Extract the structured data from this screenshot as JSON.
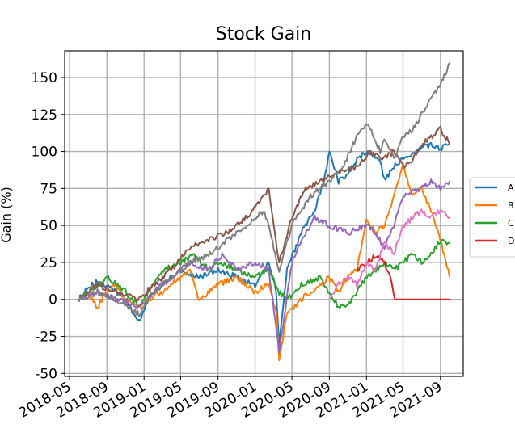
{
  "chart_data": {
    "type": "line",
    "title": "Stock Gain",
    "xlabel": "",
    "ylabel": "Gain (%)",
    "x_range": [
      "2018-04-15",
      "2021-11-15"
    ],
    "ylim": [
      -52,
      168
    ],
    "grid": true,
    "legend_position": "right (partially cut off)",
    "x_ticks": [
      "2018-05",
      "2018-09",
      "2019-01",
      "2019-05",
      "2019-09",
      "2020-01",
      "2020-05",
      "2020-09",
      "2021-01",
      "2021-05",
      "2021-09"
    ],
    "y_ticks": [
      -50,
      -25,
      0,
      25,
      50,
      75,
      100,
      125,
      150
    ],
    "series": [
      {
        "name": "A",
        "color": "#1f77b4",
        "points": [
          [
            "2018-06-01",
            0
          ],
          [
            "2018-07-01",
            8
          ],
          [
            "2018-08-01",
            12
          ],
          [
            "2018-09-01",
            10
          ],
          [
            "2018-10-01",
            5
          ],
          [
            "2018-11-01",
            0
          ],
          [
            "2018-12-15",
            -15
          ],
          [
            "2019-01-15",
            0
          ],
          [
            "2019-03-01",
            10
          ],
          [
            "2019-05-01",
            20
          ],
          [
            "2019-07-01",
            15
          ],
          [
            "2019-09-01",
            20
          ],
          [
            "2019-11-01",
            15
          ],
          [
            "2020-01-01",
            10
          ],
          [
            "2020-02-15",
            25
          ],
          [
            "2020-03-10",
            5
          ],
          [
            "2020-03-20",
            -30
          ],
          [
            "2020-04-15",
            20
          ],
          [
            "2020-06-01",
            45
          ],
          [
            "2020-07-15",
            60
          ],
          [
            "2020-08-15",
            80
          ],
          [
            "2020-09-01",
            100
          ],
          [
            "2020-10-01",
            80
          ],
          [
            "2020-11-01",
            85
          ],
          [
            "2020-12-01",
            95
          ],
          [
            "2021-01-01",
            100
          ],
          [
            "2021-02-15",
            95
          ],
          [
            "2021-03-01",
            80
          ],
          [
            "2021-04-01",
            90
          ],
          [
            "2021-05-01",
            95
          ],
          [
            "2021-06-01",
            98
          ],
          [
            "2021-07-01",
            102
          ],
          [
            "2021-08-01",
            105
          ],
          [
            "2021-09-01",
            102
          ],
          [
            "2021-10-01",
            105
          ]
        ]
      },
      {
        "name": "B",
        "color": "#ff7f0e",
        "points": [
          [
            "2018-06-01",
            0
          ],
          [
            "2018-07-01",
            5
          ],
          [
            "2018-08-01",
            -5
          ],
          [
            "2018-09-01",
            5
          ],
          [
            "2018-10-01",
            10
          ],
          [
            "2018-11-01",
            0
          ],
          [
            "2018-12-15",
            -5
          ],
          [
            "2019-01-15",
            0
          ],
          [
            "2019-03-01",
            5
          ],
          [
            "2019-05-01",
            15
          ],
          [
            "2019-06-01",
            20
          ],
          [
            "2019-07-01",
            0
          ],
          [
            "2019-09-01",
            10
          ],
          [
            "2019-11-01",
            15
          ],
          [
            "2020-01-01",
            5
          ],
          [
            "2020-02-15",
            10
          ],
          [
            "2020-03-10",
            -10
          ],
          [
            "2020-03-20",
            -40
          ],
          [
            "2020-04-15",
            -10
          ],
          [
            "2020-06-01",
            0
          ],
          [
            "2020-08-01",
            10
          ],
          [
            "2020-09-01",
            15
          ],
          [
            "2020-10-01",
            5
          ],
          [
            "2020-11-01",
            15
          ],
          [
            "2020-12-01",
            20
          ],
          [
            "2021-01-01",
            55
          ],
          [
            "2021-02-01",
            45
          ],
          [
            "2021-03-01",
            50
          ],
          [
            "2021-04-01",
            70
          ],
          [
            "2021-05-01",
            90
          ],
          [
            "2021-06-01",
            70
          ],
          [
            "2021-07-01",
            75
          ],
          [
            "2021-08-01",
            60
          ],
          [
            "2021-09-01",
            40
          ],
          [
            "2021-10-01",
            15
          ]
        ]
      },
      {
        "name": "C",
        "color": "#2ca02c",
        "points": [
          [
            "2018-06-01",
            0
          ],
          [
            "2018-07-01",
            5
          ],
          [
            "2018-08-01",
            10
          ],
          [
            "2018-09-01",
            15
          ],
          [
            "2018-10-01",
            10
          ],
          [
            "2018-11-01",
            5
          ],
          [
            "2018-12-15",
            -5
          ],
          [
            "2019-01-15",
            5
          ],
          [
            "2019-03-01",
            20
          ],
          [
            "2019-05-01",
            25
          ],
          [
            "2019-06-15",
            30
          ],
          [
            "2019-08-01",
            20
          ],
          [
            "2019-09-01",
            25
          ],
          [
            "2019-11-01",
            20
          ],
          [
            "2020-01-01",
            15
          ],
          [
            "2020-02-15",
            20
          ],
          [
            "2020-03-20",
            5
          ],
          [
            "2020-04-15",
            0
          ],
          [
            "2020-06-01",
            10
          ],
          [
            "2020-08-01",
            15
          ],
          [
            "2020-09-01",
            5
          ],
          [
            "2020-10-01",
            -5
          ],
          [
            "2020-11-01",
            -5
          ],
          [
            "2020-12-01",
            5
          ],
          [
            "2021-01-01",
            15
          ],
          [
            "2021-02-01",
            20
          ],
          [
            "2021-03-01",
            25
          ],
          [
            "2021-04-01",
            20
          ],
          [
            "2021-05-01",
            25
          ],
          [
            "2021-06-01",
            30
          ],
          [
            "2021-07-01",
            25
          ],
          [
            "2021-08-01",
            30
          ],
          [
            "2021-09-01",
            40
          ],
          [
            "2021-10-01",
            38
          ]
        ]
      },
      {
        "name": "D",
        "color": "#d62728",
        "points": [
          [
            "2020-12-01",
            20
          ],
          [
            "2021-01-01",
            25
          ],
          [
            "2021-02-01",
            30
          ],
          [
            "2021-03-01",
            25
          ],
          [
            "2021-03-20",
            15
          ],
          [
            "2021-04-05",
            0
          ],
          [
            "2021-10-01",
            0
          ]
        ]
      },
      {
        "name": "",
        "color": "#9467bd",
        "points": [
          [
            "2018-06-01",
            0
          ],
          [
            "2018-08-01",
            5
          ],
          [
            "2018-10-01",
            0
          ],
          [
            "2018-12-15",
            -5
          ],
          [
            "2019-02-01",
            5
          ],
          [
            "2019-04-01",
            15
          ],
          [
            "2019-06-01",
            25
          ],
          [
            "2019-08-01",
            20
          ],
          [
            "2019-09-15",
            30
          ],
          [
            "2019-11-01",
            20
          ],
          [
            "2020-01-01",
            25
          ],
          [
            "2020-02-15",
            20
          ],
          [
            "2020-03-20",
            -35
          ],
          [
            "2020-05-01",
            25
          ],
          [
            "2020-06-01",
            40
          ],
          [
            "2020-07-15",
            55
          ],
          [
            "2020-09-01",
            50
          ],
          [
            "2020-11-01",
            45
          ],
          [
            "2021-01-01",
            50
          ],
          [
            "2021-02-01",
            45
          ],
          [
            "2021-03-01",
            35
          ],
          [
            "2021-04-01",
            50
          ],
          [
            "2021-05-01",
            70
          ],
          [
            "2021-07-01",
            75
          ],
          [
            "2021-08-01",
            80
          ],
          [
            "2021-09-01",
            75
          ],
          [
            "2021-10-01",
            80
          ]
        ]
      },
      {
        "name": "",
        "color": "#8c564b",
        "points": [
          [
            "2018-06-01",
            0
          ],
          [
            "2018-08-01",
            10
          ],
          [
            "2018-10-01",
            5
          ],
          [
            "2018-12-15",
            0
          ],
          [
            "2019-02-01",
            10
          ],
          [
            "2019-04-01",
            20
          ],
          [
            "2019-06-01",
            35
          ],
          [
            "2019-08-01",
            40
          ],
          [
            "2019-10-01",
            45
          ],
          [
            "2019-12-01",
            55
          ],
          [
            "2020-01-15",
            65
          ],
          [
            "2020-02-15",
            75
          ],
          [
            "2020-03-20",
            25
          ],
          [
            "2020-05-01",
            55
          ],
          [
            "2020-06-15",
            75
          ],
          [
            "2020-08-01",
            80
          ],
          [
            "2020-10-01",
            85
          ],
          [
            "2020-12-01",
            90
          ],
          [
            "2021-01-15",
            100
          ],
          [
            "2021-03-01",
            95
          ],
          [
            "2021-04-01",
            100
          ],
          [
            "2021-05-01",
            90
          ],
          [
            "2021-06-01",
            95
          ],
          [
            "2021-07-01",
            105
          ],
          [
            "2021-08-01",
            110
          ],
          [
            "2021-09-01",
            115
          ],
          [
            "2021-10-01",
            105
          ]
        ]
      },
      {
        "name": "",
        "color": "#e377c2",
        "points": [
          [
            "2020-09-01",
            0
          ],
          [
            "2020-10-01",
            10
          ],
          [
            "2020-11-01",
            15
          ],
          [
            "2020-12-01",
            10
          ],
          [
            "2021-01-01",
            25
          ],
          [
            "2021-02-01",
            20
          ],
          [
            "2021-03-01",
            40
          ],
          [
            "2021-04-01",
            30
          ],
          [
            "2021-05-01",
            50
          ],
          [
            "2021-06-01",
            55
          ],
          [
            "2021-07-01",
            60
          ],
          [
            "2021-08-01",
            55
          ],
          [
            "2021-09-01",
            60
          ],
          [
            "2021-10-01",
            55
          ]
        ]
      },
      {
        "name": "",
        "color": "#7f7f7f",
        "points": [
          [
            "2018-06-01",
            0
          ],
          [
            "2018-08-01",
            5
          ],
          [
            "2018-10-01",
            0
          ],
          [
            "2018-12-15",
            -10
          ],
          [
            "2019-02-01",
            5
          ],
          [
            "2019-04-01",
            15
          ],
          [
            "2019-06-01",
            25
          ],
          [
            "2019-08-01",
            30
          ],
          [
            "2019-10-01",
            40
          ],
          [
            "2019-12-01",
            50
          ],
          [
            "2020-02-01",
            60
          ],
          [
            "2020-03-20",
            20
          ],
          [
            "2020-05-01",
            50
          ],
          [
            "2020-07-01",
            70
          ],
          [
            "2020-09-01",
            80
          ],
          [
            "2020-10-15",
            90
          ],
          [
            "2020-12-01",
            110
          ],
          [
            "2021-01-01",
            120
          ],
          [
            "2021-02-15",
            100
          ],
          [
            "2021-03-01",
            110
          ],
          [
            "2021-04-01",
            95
          ],
          [
            "2021-05-01",
            110
          ],
          [
            "2021-06-01",
            115
          ],
          [
            "2021-07-01",
            125
          ],
          [
            "2021-08-01",
            135
          ],
          [
            "2021-09-01",
            145
          ],
          [
            "2021-10-01",
            160
          ]
        ]
      }
    ]
  }
}
